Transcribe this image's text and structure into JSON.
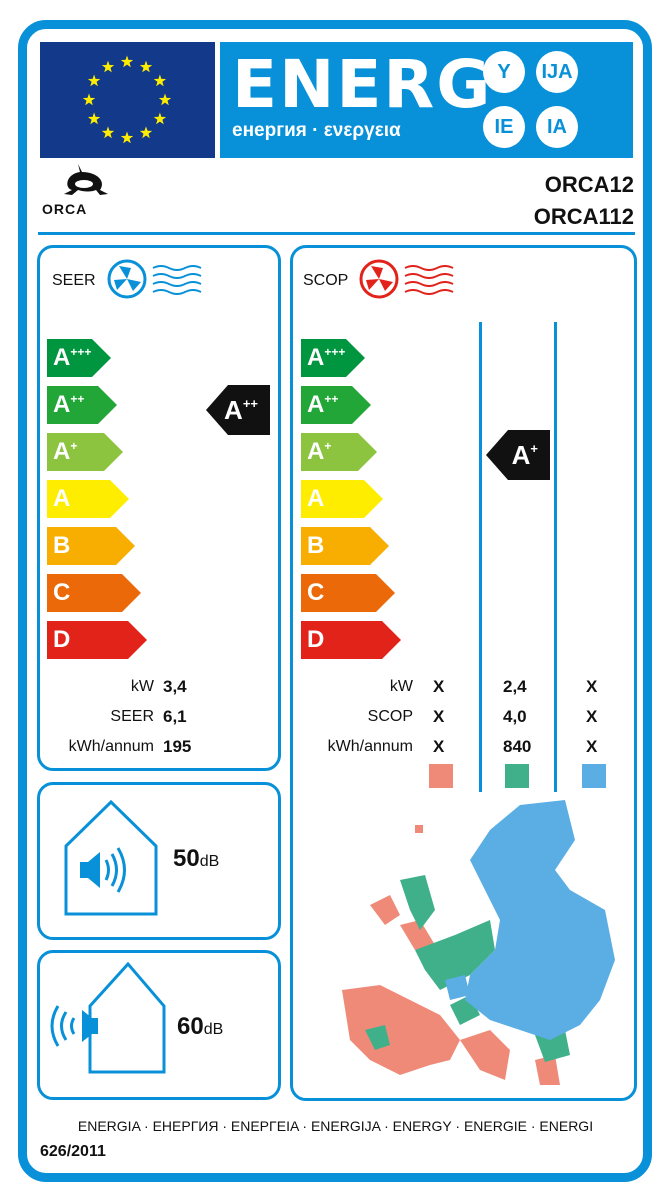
{
  "header": {
    "title": "ENERG",
    "subtitle": "енергия · ενεργεια",
    "suffixes": [
      "Y",
      "IJA",
      "IE",
      "IA"
    ]
  },
  "brand": {
    "logo_text": "ORCA",
    "models": [
      "ORCA12",
      "ORCA112"
    ]
  },
  "scale": [
    {
      "cls": "A",
      "sup": "+++",
      "color": "#00963f"
    },
    {
      "cls": "A",
      "sup": "++",
      "color": "#22a638"
    },
    {
      "cls": "A",
      "sup": "+",
      "color": "#8cc43f"
    },
    {
      "cls": "A",
      "sup": "",
      "color": "#ffed00"
    },
    {
      "cls": "B",
      "sup": "",
      "color": "#f7ae00"
    },
    {
      "cls": "C",
      "sup": "",
      "color": "#eb6909"
    },
    {
      "cls": "D",
      "sup": "",
      "color": "#e2231a"
    }
  ],
  "seer": {
    "label": "SEER",
    "rating": "A",
    "rating_sup": "++",
    "rows": [
      {
        "label": "kW",
        "value": "3,4"
      },
      {
        "label": "SEER",
        "value": "6,1"
      },
      {
        "label": "kWh/annum",
        "value": "195"
      }
    ]
  },
  "scop": {
    "label": "SCOP",
    "rating": "A",
    "rating_sup": "+",
    "rows": [
      {
        "label": "kW",
        "values": [
          "X",
          "2,4",
          "X"
        ]
      },
      {
        "label": "SCOP",
        "values": [
          "X",
          "4,0",
          "X"
        ]
      },
      {
        "label": "kWh/annum",
        "values": [
          "X",
          "840",
          "X"
        ]
      }
    ],
    "zone_colors": [
      "#ef8a78",
      "#3fb08a",
      "#5aaee3"
    ]
  },
  "noise": {
    "indoor": {
      "value": "50",
      "unit": "dB"
    },
    "outdoor": {
      "value": "60",
      "unit": "dB"
    }
  },
  "footer": {
    "languages": "ENERGIA · ЕНЕРГИЯ · ΕΝΕΡΓΕΙΑ · ENERGIJA · ENERGY · ENERGIE · ENERGI",
    "regulation": "626/2011"
  }
}
